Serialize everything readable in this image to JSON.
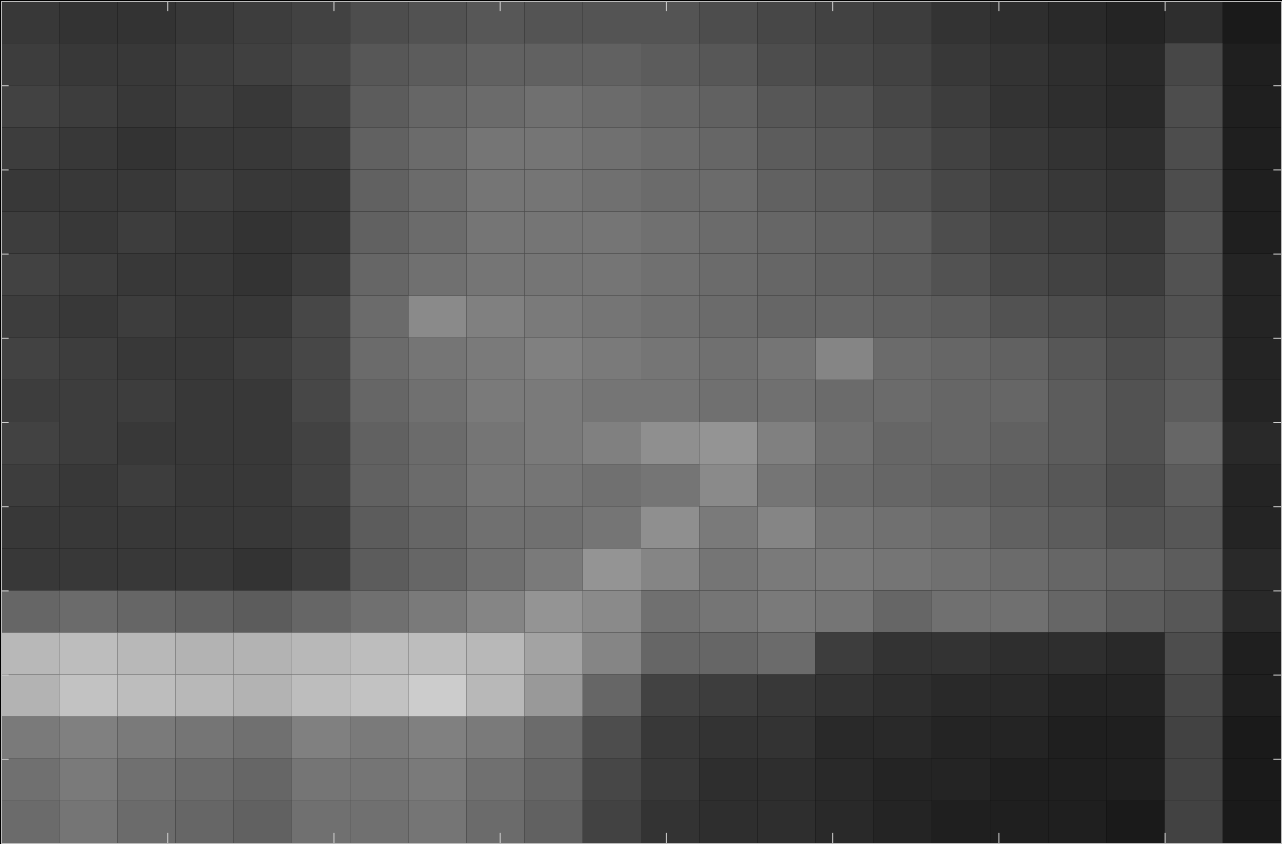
{
  "chart_data": {
    "type": "heatmap",
    "xlim": [
      0,
      154
    ],
    "ylim": [
      0,
      100
    ],
    "xticks": [
      20,
      40,
      60,
      80,
      100,
      120,
      140
    ],
    "yticks": [
      10,
      20,
      30,
      40,
      50,
      60,
      70,
      80,
      90
    ],
    "tick_labels": false,
    "color": "gray",
    "zlim": [
      0,
      100
    ],
    "cells": [
      [
        22,
        20,
        20,
        22,
        24,
        26,
        30,
        32,
        34,
        33,
        33,
        33,
        30,
        28,
        26,
        24,
        20,
        18,
        16,
        14,
        18,
        10
      ],
      [
        24,
        22,
        22,
        24,
        25,
        28,
        34,
        36,
        38,
        38,
        38,
        36,
        34,
        30,
        28,
        26,
        22,
        20,
        18,
        16,
        28,
        12
      ],
      [
        26,
        24,
        22,
        24,
        22,
        26,
        36,
        40,
        42,
        44,
        42,
        40,
        38,
        34,
        32,
        28,
        24,
        20,
        18,
        16,
        30,
        12
      ],
      [
        24,
        22,
        20,
        22,
        22,
        24,
        38,
        42,
        46,
        46,
        44,
        42,
        40,
        36,
        34,
        30,
        26,
        22,
        20,
        18,
        30,
        12
      ],
      [
        22,
        22,
        22,
        24,
        22,
        22,
        38,
        42,
        46,
        46,
        44,
        42,
        42,
        38,
        36,
        32,
        28,
        24,
        22,
        20,
        30,
        12
      ],
      [
        24,
        22,
        24,
        22,
        20,
        22,
        38,
        42,
        46,
        46,
        46,
        44,
        42,
        40,
        38,
        36,
        30,
        26,
        24,
        22,
        32,
        12
      ],
      [
        26,
        24,
        22,
        22,
        20,
        24,
        40,
        44,
        46,
        46,
        46,
        44,
        42,
        40,
        38,
        36,
        32,
        28,
        26,
        24,
        32,
        14
      ],
      [
        24,
        22,
        24,
        22,
        22,
        28,
        42,
        54,
        50,
        48,
        46,
        44,
        42,
        40,
        40,
        38,
        36,
        32,
        30,
        28,
        32,
        14
      ],
      [
        26,
        24,
        22,
        22,
        24,
        28,
        42,
        46,
        48,
        50,
        48,
        46,
        44,
        46,
        52,
        42,
        40,
        38,
        34,
        30,
        34,
        14
      ],
      [
        24,
        24,
        24,
        22,
        22,
        28,
        40,
        44,
        48,
        48,
        46,
        46,
        44,
        44,
        42,
        42,
        40,
        40,
        36,
        32,
        36,
        14
      ],
      [
        26,
        24,
        22,
        22,
        22,
        26,
        38,
        42,
        46,
        48,
        50,
        56,
        58,
        50,
        44,
        40,
        40,
        38,
        36,
        32,
        40,
        16
      ],
      [
        24,
        22,
        24,
        22,
        22,
        26,
        38,
        42,
        46,
        46,
        44,
        46,
        54,
        46,
        42,
        40,
        38,
        36,
        34,
        30,
        36,
        14
      ],
      [
        22,
        22,
        22,
        22,
        22,
        24,
        36,
        40,
        44,
        44,
        46,
        56,
        48,
        52,
        46,
        44,
        42,
        38,
        36,
        32,
        34,
        14
      ],
      [
        22,
        22,
        22,
        22,
        20,
        24,
        36,
        40,
        44,
        48,
        58,
        52,
        46,
        48,
        48,
        46,
        44,
        42,
        40,
        38,
        36,
        16
      ],
      [
        40,
        42,
        40,
        38,
        36,
        40,
        44,
        48,
        52,
        58,
        54,
        44,
        46,
        48,
        46,
        40,
        44,
        44,
        40,
        36,
        34,
        16
      ],
      [
        72,
        74,
        72,
        70,
        70,
        72,
        74,
        74,
        72,
        64,
        52,
        40,
        40,
        42,
        24,
        20,
        20,
        18,
        18,
        16,
        30,
        12
      ],
      [
        70,
        76,
        74,
        72,
        70,
        74,
        76,
        80,
        72,
        60,
        40,
        26,
        24,
        22,
        20,
        18,
        16,
        16,
        14,
        14,
        28,
        12
      ],
      [
        48,
        50,
        48,
        46,
        44,
        50,
        48,
        50,
        48,
        42,
        30,
        22,
        20,
        20,
        16,
        16,
        14,
        14,
        12,
        12,
        26,
        10
      ],
      [
        44,
        48,
        44,
        42,
        40,
        46,
        46,
        48,
        44,
        40,
        28,
        22,
        18,
        18,
        16,
        14,
        14,
        12,
        12,
        12,
        26,
        10
      ],
      [
        42,
        46,
        42,
        40,
        38,
        44,
        44,
        46,
        42,
        38,
        26,
        20,
        18,
        18,
        16,
        14,
        12,
        12,
        12,
        10,
        26,
        10
      ]
    ]
  }
}
